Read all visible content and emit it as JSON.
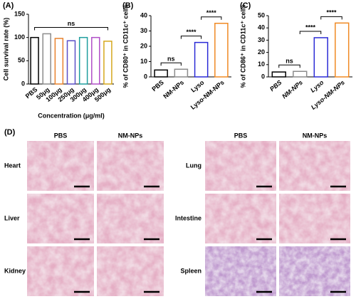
{
  "chart_data": [
    {
      "type": "bar",
      "panel": "(A)",
      "y_label": "Cell survival rate (%)",
      "x_label": "Concentration (μg/ml)",
      "categories": [
        "PBS",
        "50μg",
        "100μg",
        "250μg",
        "300μg",
        "400μg",
        "500μg"
      ],
      "values": [
        100,
        108,
        98,
        93,
        100,
        100,
        92
      ],
      "colors": [
        "#000000",
        "#8c8c8c",
        "#e8822e",
        "#5b4fc7",
        "#1f9e9e",
        "#b04fc7",
        "#d6a81e"
      ],
      "ylim": [
        0,
        150
      ],
      "yticks": [
        0,
        50,
        100,
        150
      ],
      "annotations": [
        "ns"
      ]
    },
    {
      "type": "bar",
      "panel": "(B)",
      "y_label": "% of CD80⁺ in CD11c⁺ cells",
      "categories": [
        "PBS",
        "NM-NPs",
        "Lyso",
        "Lyso-NM-NPs"
      ],
      "values": [
        4.5,
        5,
        22.5,
        35
      ],
      "colors": [
        "#000000",
        "#8c8c8c",
        "#2b2bd6",
        "#f08a24"
      ],
      "ylim": [
        0,
        40
      ],
      "yticks": [
        0,
        10,
        20,
        30,
        40
      ],
      "annotations": [
        "ns",
        "****",
        "****"
      ]
    },
    {
      "type": "bar",
      "panel": "(C)",
      "y_label": "% of CD86⁺ in CD11c⁺ cells",
      "categories": [
        "PBS",
        "NM-NPs",
        "Lyso",
        "Lyso-NM-NPs"
      ],
      "category_style": "italic",
      "values": [
        4,
        4.5,
        32,
        44
      ],
      "colors": [
        "#000000",
        "#8c8c8c",
        "#2b2bd6",
        "#f08a24"
      ],
      "ylim": [
        0,
        50
      ],
      "yticks": [
        0,
        10,
        20,
        30,
        40,
        50
      ],
      "annotations": [
        "ns",
        "****",
        "****"
      ]
    }
  ],
  "panel_d": {
    "label": "(D)",
    "left_columns": [
      "PBS",
      "NM-NPs"
    ],
    "right_columns": [
      "PBS",
      "NM-NPs"
    ],
    "left_rows": [
      "Heart",
      "Liver",
      "Kidney"
    ],
    "right_rows": [
      "Lung",
      "Intestine",
      "Spleen"
    ]
  }
}
